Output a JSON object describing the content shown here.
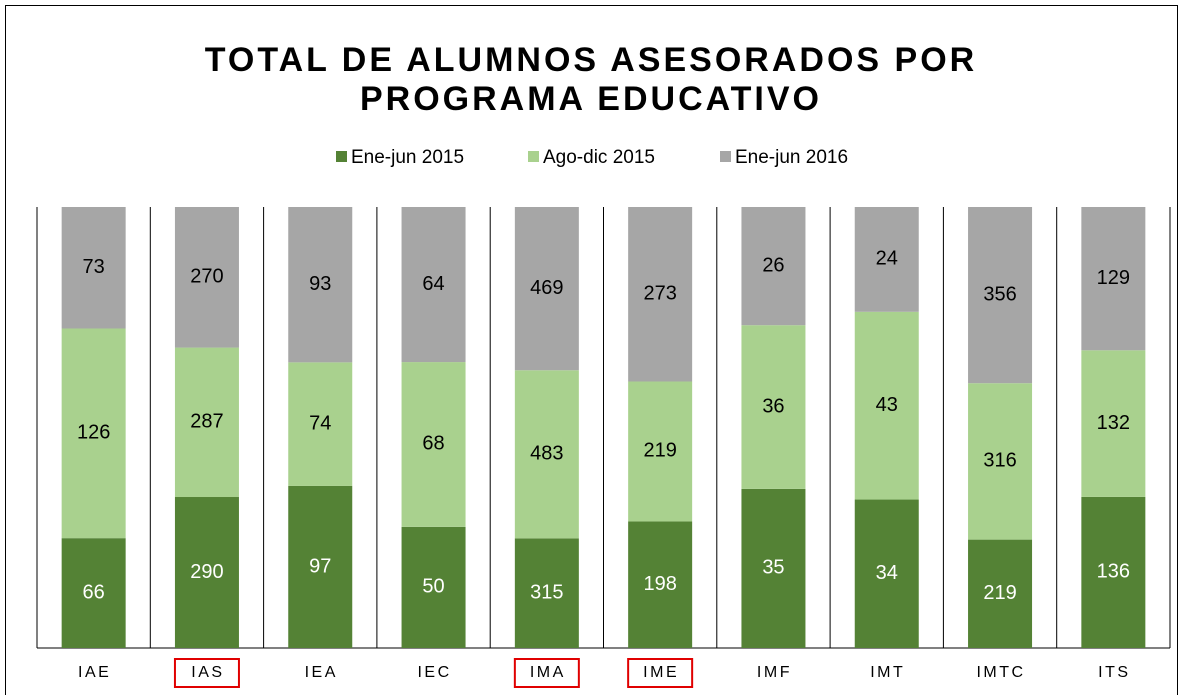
{
  "chart_data": {
    "type": "bar",
    "stacking": "percent",
    "title": [
      "TOTAL DE ALUMNOS ASESORADOS POR",
      "PROGRAMA EDUCATIVO"
    ],
    "categories": [
      "IAE",
      "IAS",
      "IEA",
      "IEC",
      "IMA",
      "IME",
      "IMF",
      "IMT",
      "IMTC",
      "ITS"
    ],
    "highlighted": [
      false,
      true,
      false,
      false,
      true,
      true,
      false,
      false,
      false,
      false
    ],
    "highlight_color": "#e00000",
    "series": [
      {
        "name": "Ene-jun 2015",
        "color": "#548235",
        "label_color": "#ffffff",
        "values": [
          66,
          290,
          97,
          50,
          315,
          198,
          35,
          34,
          219,
          136
        ]
      },
      {
        "name": "Ago-dic 2015",
        "color": "#a9d18e",
        "label_color": "#000000",
        "values": [
          126,
          287,
          74,
          68,
          483,
          219,
          36,
          43,
          316,
          132
        ]
      },
      {
        "name": "Ene-jun 2016",
        "color": "#a6a6a6",
        "label_color": "#000000",
        "values": [
          73,
          270,
          93,
          64,
          469,
          273,
          26,
          24,
          356,
          129
        ]
      }
    ],
    "grid": true,
    "legend": "top"
  }
}
